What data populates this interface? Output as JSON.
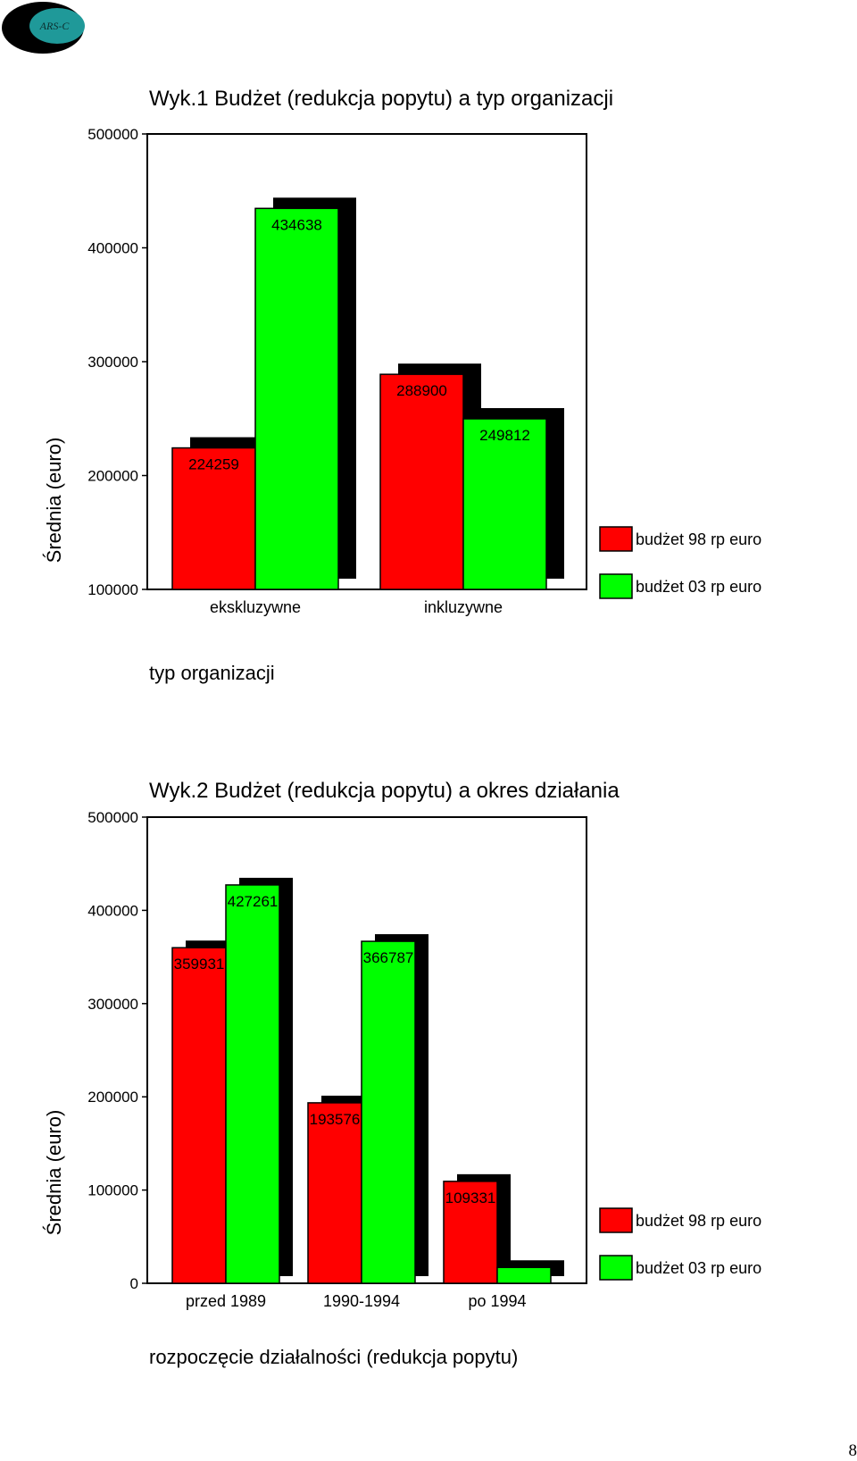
{
  "logo": {
    "text": "ARS-C"
  },
  "page_number": "8",
  "chart_data": [
    {
      "type": "bar",
      "title": "Wyk.1 Budżet (redukcja popytu) a typ organizacji",
      "ylabel": "Średnia (euro)",
      "xlabel": "typ organizacji",
      "ylim": [
        100000,
        500000
      ],
      "yticks": [
        "100000",
        "200000",
        "300000",
        "400000",
        "500000"
      ],
      "categories": [
        "ekskluzywne",
        "inkluzywne"
      ],
      "series": [
        {
          "name": "budżet 98 rp euro",
          "color": "#ff0000",
          "values": [
            224259,
            288900
          ]
        },
        {
          "name": "budżet 03 rp euro",
          "color": "#00ff00",
          "values": [
            434638,
            249812
          ]
        }
      ],
      "data_labels": [
        [
          "224259",
          "434638"
        ],
        [
          "288900",
          "249812"
        ]
      ],
      "legend": "right",
      "grid": false
    },
    {
      "type": "bar",
      "title": "Wyk.2 Budżet (redukcja popytu) a okres działania",
      "ylabel": "Średnia (euro)",
      "xlabel": "rozpoczęcie działalności (redukcja popytu)",
      "ylim": [
        0,
        500000
      ],
      "yticks": [
        "0",
        "100000",
        "200000",
        "300000",
        "400000",
        "500000"
      ],
      "categories": [
        "przed 1989",
        "1990-1994",
        "po 1994"
      ],
      "series": [
        {
          "name": "budżet 98 rp euro",
          "color": "#ff0000",
          "values": [
            359931,
            193576,
            109331
          ]
        },
        {
          "name": "budżet 03 rp euro",
          "color": "#00ff00",
          "values": [
            427261,
            366787,
            17000
          ]
        }
      ],
      "data_labels": [
        [
          "359931",
          "427261"
        ],
        [
          "193576",
          "366787"
        ],
        [
          "109331",
          ""
        ]
      ],
      "legend": "right",
      "grid": false
    }
  ]
}
